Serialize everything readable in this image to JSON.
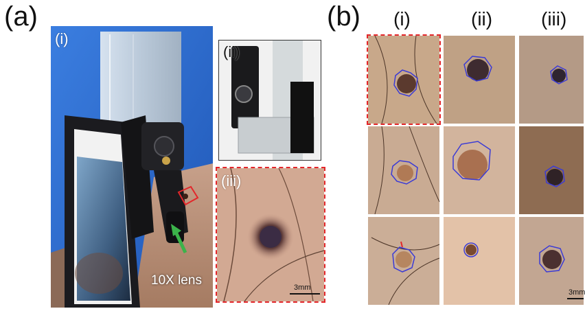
{
  "panel_a": {
    "label": "(a)",
    "sub_i": "(i)",
    "sub_ii": "(ii)",
    "sub_iii": "(iii)",
    "lens_label": "10X lens",
    "scale_label": "3mm"
  },
  "panel_b": {
    "label": "(b)",
    "col_i": "(i)",
    "col_ii": "(ii)",
    "col_iii": "(iii)",
    "scale_label": "3mm"
  },
  "colors": {
    "dashed_border": "#e3262a",
    "contour": "#3a3ad6",
    "arrow": "#3bb34a",
    "shirt": "#2f6fd1"
  }
}
